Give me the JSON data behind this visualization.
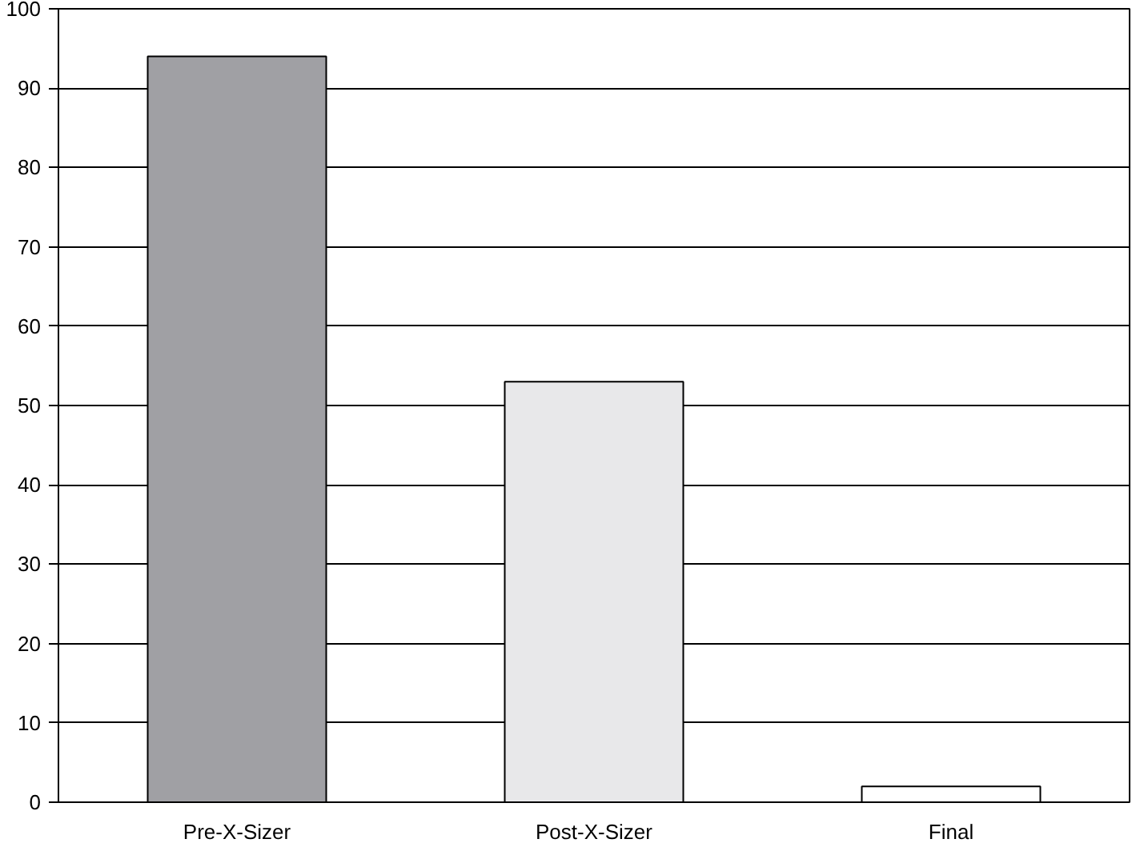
{
  "chart_data": {
    "type": "bar",
    "categories": [
      "Pre-X-Sizer",
      "Post-X-Sizer",
      "Final"
    ],
    "values": [
      94,
      53,
      2
    ],
    "colors": [
      "#a0a0a4",
      "#e8e8ea",
      "#ffffff"
    ],
    "ylim": [
      0,
      100
    ],
    "yticks": [
      0,
      10,
      20,
      30,
      40,
      50,
      60,
      70,
      80,
      90,
      100
    ],
    "grid": "y"
  }
}
